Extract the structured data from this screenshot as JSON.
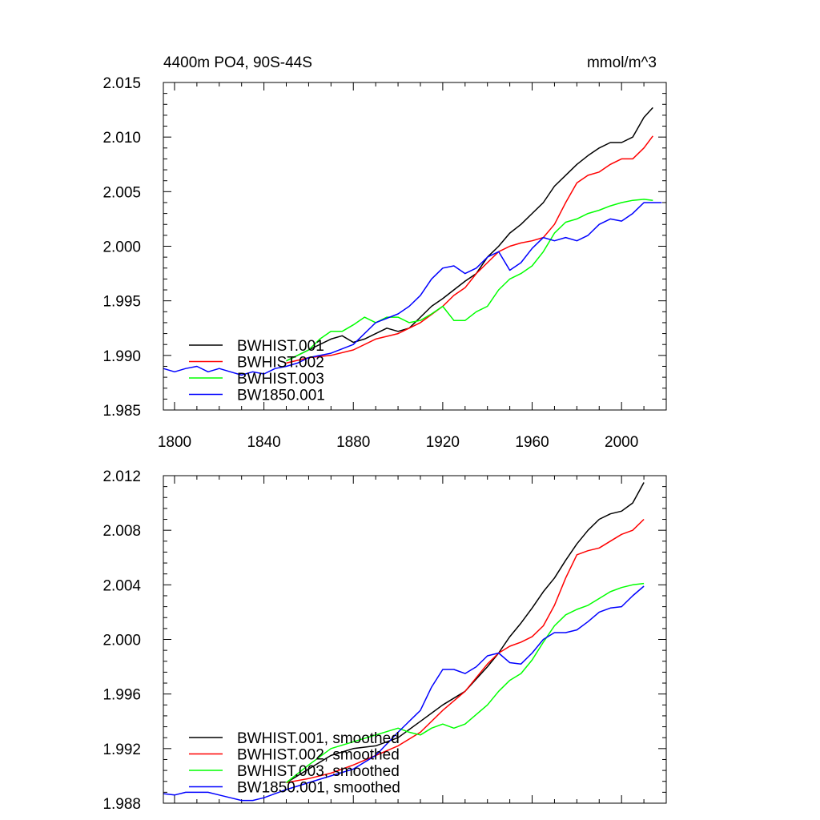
{
  "chart_data": [
    {
      "type": "line",
      "title_left": "4400m PO4, 90S-44S",
      "title_right": "mmol/m^3",
      "xlim": [
        1795,
        2020
      ],
      "ylim": [
        1.985,
        2.015
      ],
      "xticks": [
        1800,
        1840,
        1880,
        1920,
        1960,
        2000
      ],
      "xtick_labels": [
        "1800",
        "1840",
        "1880",
        "1920",
        "1960",
        "2000"
      ],
      "yticks": [
        1.985,
        1.99,
        1.995,
        2.0,
        2.005,
        2.01,
        2.015
      ],
      "ytick_labels": [
        "1.985",
        "1.990",
        "1.995",
        "2.000",
        "2.005",
        "2.010",
        "2.015"
      ],
      "legend_placement": "bottom-left",
      "series": [
        {
          "name": "BWHIST.001",
          "color": "#000000",
          "x": [
            1850,
            1860,
            1870,
            1875,
            1880,
            1885,
            1890,
            1895,
            1900,
            1905,
            1910,
            1915,
            1920,
            1925,
            1930,
            1935,
            1940,
            1945,
            1950,
            1955,
            1960,
            1965,
            1970,
            1975,
            1980,
            1985,
            1990,
            1995,
            2000,
            2005,
            2010,
            2014
          ],
          "y": [
            1.9895,
            1.9905,
            1.9915,
            1.9918,
            1.9912,
            1.9915,
            1.992,
            1.9925,
            1.9922,
            1.9925,
            1.9935,
            1.9945,
            1.9952,
            1.996,
            1.9968,
            1.9975,
            1.999,
            2.0,
            2.0012,
            2.002,
            2.003,
            2.004,
            2.0055,
            2.0065,
            2.0075,
            2.0083,
            2.009,
            2.0095,
            2.0095,
            2.01,
            2.0118,
            2.0127
          ]
        },
        {
          "name": "BWHIST.002",
          "color": "#ff0000",
          "x": [
            1850,
            1860,
            1870,
            1880,
            1890,
            1900,
            1910,
            1920,
            1925,
            1930,
            1935,
            1940,
            1945,
            1950,
            1955,
            1960,
            1965,
            1970,
            1975,
            1980,
            1985,
            1990,
            1995,
            2000,
            2005,
            2010,
            2014
          ],
          "y": [
            1.9893,
            1.9898,
            1.99,
            1.9905,
            1.9915,
            1.992,
            1.993,
            1.9945,
            1.9955,
            1.9962,
            1.9975,
            1.9985,
            1.9995,
            2.0,
            2.0003,
            2.0005,
            2.0008,
            2.002,
            2.004,
            2.0058,
            2.0065,
            2.0068,
            2.0075,
            2.008,
            2.008,
            2.009,
            2.0101
          ]
        },
        {
          "name": "BWHIST.003",
          "color": "#00ff00",
          "x": [
            1850,
            1860,
            1865,
            1870,
            1875,
            1880,
            1885,
            1890,
            1895,
            1900,
            1905,
            1910,
            1915,
            1920,
            1925,
            1930,
            1935,
            1940,
            1945,
            1950,
            1955,
            1960,
            1965,
            1970,
            1975,
            1980,
            1985,
            1990,
            1995,
            2000,
            2005,
            2010,
            2014
          ],
          "y": [
            1.9895,
            1.9905,
            1.9915,
            1.9922,
            1.9922,
            1.9928,
            1.9935,
            1.993,
            1.9935,
            1.9935,
            1.993,
            1.9932,
            1.9938,
            1.9945,
            1.9932,
            1.9932,
            1.994,
            1.9945,
            1.996,
            1.997,
            1.9975,
            1.9982,
            1.9995,
            2.0012,
            2.0022,
            2.0025,
            2.003,
            2.0033,
            2.0037,
            2.004,
            2.0042,
            2.0043,
            2.0042
          ]
        },
        {
          "name": "BW1850.001",
          "color": "#0000ff",
          "x": [
            1795,
            1800,
            1805,
            1810,
            1815,
            1820,
            1825,
            1830,
            1835,
            1840,
            1845,
            1850,
            1855,
            1860,
            1870,
            1880,
            1890,
            1900,
            1905,
            1910,
            1915,
            1920,
            1925,
            1930,
            1935,
            1940,
            1945,
            1950,
            1955,
            1960,
            1965,
            1970,
            1975,
            1980,
            1985,
            1990,
            1995,
            2000,
            2005,
            2010,
            2015,
            2018
          ],
          "y": [
            1.9888,
            1.9885,
            1.9888,
            1.989,
            1.9885,
            1.9888,
            1.9885,
            1.9882,
            1.9885,
            1.9883,
            1.9888,
            1.989,
            1.9893,
            1.9898,
            1.9902,
            1.991,
            1.993,
            1.9938,
            1.9945,
            1.9955,
            1.997,
            1.998,
            1.9982,
            1.9975,
            1.998,
            1.999,
            1.9995,
            1.9978,
            1.9985,
            1.9998,
            2.0008,
            2.0005,
            2.0008,
            2.0005,
            2.001,
            2.002,
            2.0025,
            2.0023,
            2.003,
            2.004,
            2.004,
            2.004
          ]
        }
      ]
    },
    {
      "type": "line",
      "xlim": [
        1795,
        2020
      ],
      "ylim": [
        1.988,
        2.012
      ],
      "xticks": [
        1800,
        1840,
        1880,
        1920,
        1960,
        2000
      ],
      "yticks": [
        1.988,
        1.992,
        1.996,
        2.0,
        2.004,
        2.008,
        2.012
      ],
      "ytick_labels": [
        "1.988",
        "1.992",
        "1.996",
        "2.000",
        "2.004",
        "2.008",
        "2.012"
      ],
      "legend_placement": "bottom-left",
      "series": [
        {
          "name": "BWHIST.001, smoothed",
          "color": "#000000",
          "x": [
            1850,
            1860,
            1870,
            1880,
            1890,
            1900,
            1910,
            1920,
            1930,
            1940,
            1945,
            1950,
            1955,
            1960,
            1965,
            1970,
            1975,
            1980,
            1985,
            1990,
            1995,
            2000,
            2005,
            2010
          ],
          "y": [
            1.9895,
            1.9905,
            1.9915,
            1.992,
            1.9922,
            1.9928,
            1.994,
            1.9952,
            1.9962,
            1.998,
            1.999,
            2.0002,
            2.0012,
            2.0023,
            2.0035,
            2.0045,
            2.0058,
            2.007,
            2.008,
            2.0088,
            2.0092,
            2.0094,
            2.01,
            2.0115
          ]
        },
        {
          "name": "BWHIST.002, smoothed",
          "color": "#ff0000",
          "x": [
            1850,
            1860,
            1870,
            1880,
            1890,
            1900,
            1910,
            1920,
            1930,
            1940,
            1945,
            1950,
            1955,
            1960,
            1965,
            1970,
            1975,
            1980,
            1985,
            1990,
            1995,
            2000,
            2005,
            2010
          ],
          "y": [
            1.9895,
            1.9898,
            1.9902,
            1.9908,
            1.9915,
            1.9922,
            1.9932,
            1.9948,
            1.9962,
            1.9982,
            1.999,
            1.9995,
            1.9998,
            2.0002,
            2.001,
            2.0025,
            2.0045,
            2.0062,
            2.0065,
            2.0067,
            2.0072,
            2.0077,
            2.008,
            2.0088
          ]
        },
        {
          "name": "BWHIST.003, smoothed",
          "color": "#00ff00",
          "x": [
            1850,
            1860,
            1870,
            1880,
            1890,
            1900,
            1905,
            1910,
            1915,
            1920,
            1925,
            1930,
            1935,
            1940,
            1945,
            1950,
            1955,
            1960,
            1965,
            1970,
            1975,
            1980,
            1985,
            1990,
            1995,
            2000,
            2005,
            2010
          ],
          "y": [
            1.9895,
            1.9908,
            1.992,
            1.9925,
            1.993,
            1.9935,
            1.9932,
            1.993,
            1.9935,
            1.9938,
            1.9935,
            1.9938,
            1.9945,
            1.9952,
            1.9962,
            1.997,
            1.9975,
            1.9985,
            1.9998,
            2.001,
            2.0018,
            2.0022,
            2.0025,
            2.003,
            2.0035,
            2.0038,
            2.004,
            2.0041
          ]
        },
        {
          "name": "BW1850.001, smoothed",
          "color": "#0000ff",
          "x": [
            1795,
            1800,
            1805,
            1810,
            1815,
            1820,
            1825,
            1830,
            1835,
            1840,
            1845,
            1850,
            1860,
            1870,
            1880,
            1890,
            1900,
            1910,
            1915,
            1920,
            1925,
            1930,
            1935,
            1940,
            1945,
            1950,
            1955,
            1960,
            1965,
            1970,
            1975,
            1980,
            1985,
            1990,
            1995,
            2000,
            2005,
            2010
          ],
          "y": [
            1.9887,
            1.9886,
            1.9888,
            1.9888,
            1.9888,
            1.9886,
            1.9884,
            1.9882,
            1.9882,
            1.9884,
            1.9887,
            1.989,
            1.9895,
            1.99,
            1.9905,
            1.9915,
            1.9932,
            1.9948,
            1.9965,
            1.9978,
            1.9978,
            1.9975,
            1.998,
            1.9988,
            1.999,
            1.9983,
            1.9982,
            1.999,
            2.0,
            2.0005,
            2.0005,
            2.0007,
            2.0013,
            2.002,
            2.0023,
            2.0024,
            2.0032,
            2.0039
          ]
        }
      ]
    }
  ]
}
